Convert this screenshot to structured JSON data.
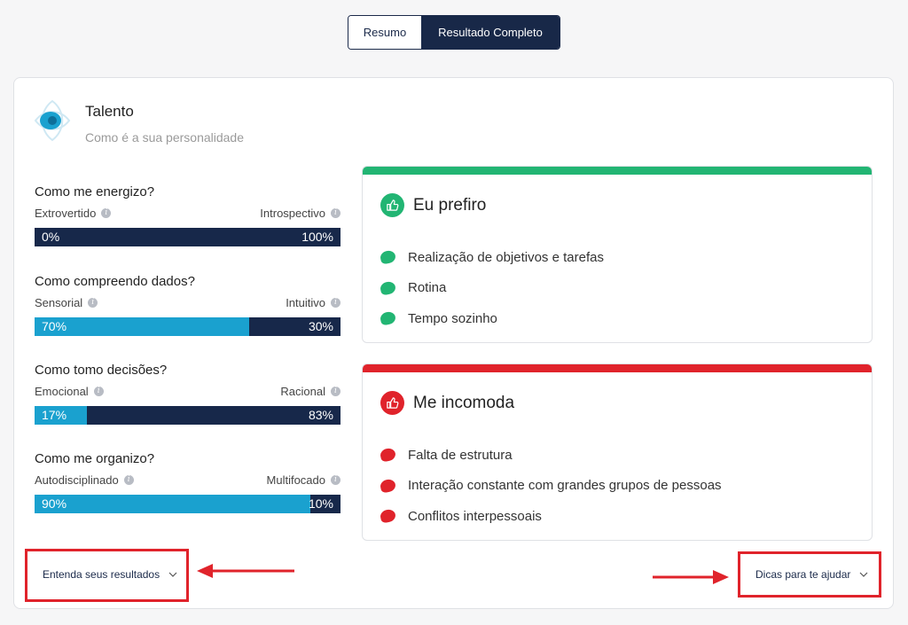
{
  "tabs": [
    {
      "label": "Resumo",
      "active": false
    },
    {
      "label": "Resultado Completo",
      "active": true
    }
  ],
  "header": {
    "title": "Talento",
    "subtitle": "Como é a sua personalidade"
  },
  "metrics": [
    {
      "question": "Como me energizo?",
      "left_label": "Extrovertido",
      "right_label": "Introspectivo",
      "left_percent": "0%",
      "right_percent": "100%",
      "left_value": 0
    },
    {
      "question": "Como compreendo dados?",
      "left_label": "Sensorial",
      "right_label": "Intuitivo",
      "left_percent": "70%",
      "right_percent": "30%",
      "left_value": 70
    },
    {
      "question": "Como tomo decisões?",
      "left_label": "Emocional",
      "right_label": "Racional",
      "left_percent": "17%",
      "right_percent": "83%",
      "left_value": 17
    },
    {
      "question": "Como me organizo?",
      "left_label": "Autodisciplinado",
      "right_label": "Multifocado",
      "left_percent": "90%",
      "right_percent": "10%",
      "left_value": 90
    }
  ],
  "prefer": {
    "title": "Eu prefiro",
    "color": "#22b573",
    "items": [
      "Realização de objetivos e tarefas",
      "Rotina",
      "Tempo sozinho"
    ]
  },
  "dislike": {
    "title": "Me incomoda",
    "color": "#e0232b",
    "items": [
      "Falta de estrutura",
      "Interação constante com grandes grupos de pessoas",
      "Conflitos interpessoais"
    ]
  },
  "footer": {
    "left_dropdown": "Entenda seus resultados",
    "right_dropdown": "Dicas para te ajudar"
  },
  "colors": {
    "navy": "#17284a",
    "cyan": "#1aa1cf",
    "highlight": "#e0232b"
  }
}
